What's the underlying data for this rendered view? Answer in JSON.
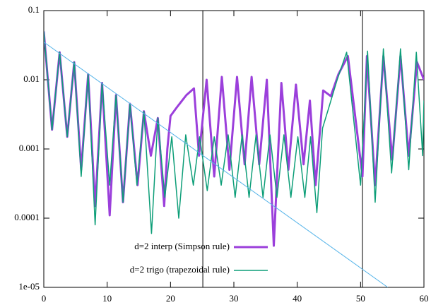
{
  "chart_data": {
    "type": "line",
    "log_y": true,
    "xlim": [
      0,
      60
    ],
    "xticks": [
      0,
      10,
      20,
      30,
      40,
      50,
      60
    ],
    "ylim": [
      1e-05,
      0.1
    ],
    "yticks": [
      {
        "value": 1e-05,
        "label": "1e-05"
      },
      0.0001,
      0.001,
      0.01,
      0.1
    ],
    "vlines": [
      25.1,
      50.3
    ],
    "legend": "bottom center",
    "series": [
      {
        "name": "d=2 interp (Simpson rule)",
        "color": "#9b3fdb",
        "width": 3,
        "x": [
          0,
          1.3,
          2.5,
          3.7,
          4.8,
          5.9,
          7.0,
          8.1,
          9.2,
          10.4,
          11.4,
          12.5,
          13.6,
          14.8,
          15.8,
          16.9,
          18.0,
          19.0,
          19.5,
          20,
          21,
          22.5,
          23.7,
          24.5,
          25.7,
          26.9,
          28.1,
          29.3,
          30.5,
          31.7,
          32.8,
          34.0,
          35.2,
          36.3,
          37.5,
          38.6,
          39.8,
          41.0,
          42.0,
          42.9,
          44.1,
          45.3,
          46.5,
          48.0,
          50.3,
          51.0,
          52.3,
          53.6,
          55.0,
          56.3,
          57.6,
          58.9,
          60
        ],
        "values": [
          0.05,
          0.0019,
          0.025,
          0.0015,
          0.018,
          0.0005,
          0.012,
          0.00015,
          0.009,
          0.00011,
          0.006,
          0.00017,
          0.0045,
          0.0003,
          0.0035,
          0.0008,
          0.0028,
          0.00015,
          0.001,
          0.003,
          0.004,
          0.006,
          0.0075,
          0.0008,
          0.01,
          0.0004,
          0.011,
          0.0005,
          0.011,
          0.0006,
          0.011,
          0.0006,
          0.01,
          4e-05,
          0.009,
          0.0005,
          0.0085,
          0.0006,
          0.005,
          0.0003,
          0.007,
          0.0058,
          0.012,
          0.022,
          0.0004,
          0.022,
          0.0003,
          0.022,
          0.0007,
          0.022,
          0.0008,
          0.018,
          0.01
        ]
      },
      {
        "name": "d=2 trigo (trapezoidal rule)",
        "color": "#0d9e78",
        "width": 1.5,
        "x": [
          0,
          1.3,
          2.5,
          3.7,
          4.8,
          5.9,
          7.0,
          8.1,
          9.2,
          10.4,
          11.4,
          12.5,
          13.6,
          14.7,
          15.8,
          17.0,
          18.0,
          19.1,
          20.2,
          21.3,
          22.4,
          23.6,
          24.6,
          25.8,
          26.9,
          28.0,
          29.1,
          30.2,
          31.3,
          32.4,
          33.5,
          34.6,
          35.7,
          36.8,
          37.9,
          39.0,
          40.1,
          41.2,
          42.1,
          43.1,
          44.0,
          45.0,
          46.3,
          47.8,
          50.0,
          51.1,
          52.3,
          53.6,
          54.9,
          56.3,
          57.6,
          58.8,
          59.8,
          60
        ],
        "values": [
          0.05,
          0.0019,
          0.025,
          0.0015,
          0.018,
          0.0004,
          0.012,
          8e-05,
          0.009,
          0.0003,
          0.006,
          0.00017,
          0.0045,
          0.0003,
          0.0035,
          6e-05,
          0.0028,
          0.0002,
          0.0015,
          0.0001,
          0.0016,
          0.0003,
          0.0015,
          0.00025,
          0.0015,
          0.0003,
          0.0016,
          0.0002,
          0.0016,
          0.0002,
          0.0016,
          0.0002,
          0.0016,
          0.0002,
          0.0016,
          0.0002,
          0.0015,
          0.0002,
          0.0015,
          0.00012,
          0.002,
          0.004,
          0.01,
          0.025,
          0.0003,
          0.026,
          0.00017,
          0.028,
          0.00045,
          0.028,
          0.0005,
          0.025,
          0.0008,
          0.005
        ]
      },
      {
        "color": "#56b4e9",
        "width": 1,
        "x": [
          0,
          54.3
        ],
        "values": [
          0.035,
          1e-05
        ]
      }
    ]
  }
}
